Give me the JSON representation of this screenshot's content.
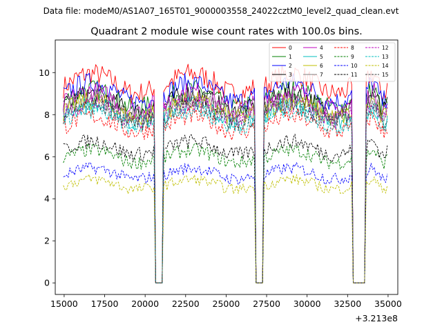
{
  "suptitle": "Data file: modeM0/AS1A07_165T01_9000003558_24022cztM0_level2_quad_clean.evt",
  "chart_data": {
    "type": "line",
    "title": "Quadrant 2 module wise count rates with 100.0s bins.",
    "xlabel": "",
    "ylabel": "",
    "x_offset_label": "+3.213e8",
    "xlim": [
      14450,
      35600
    ],
    "ylim": [
      -0.55,
      11.55
    ],
    "x_ticks": [
      15000,
      17500,
      20000,
      22500,
      25000,
      27500,
      30000,
      32500,
      35000
    ],
    "y_ticks": [
      0,
      2,
      4,
      6,
      8,
      10
    ],
    "gaps": [
      [
        20600,
        21100
      ],
      [
        26800,
        27300
      ],
      [
        32800,
        33600
      ]
    ],
    "segments": [
      [
        14950,
        20600
      ],
      [
        21100,
        26800
      ],
      [
        27300,
        32800
      ],
      [
        33600,
        34950
      ]
    ],
    "bin": 100,
    "legend_position": "top-right",
    "series": [
      {
        "name": "0",
        "color": "#ff0000",
        "dash": "solid",
        "level": 9.3
      },
      {
        "name": "1",
        "color": "#008000",
        "dash": "solid",
        "level": 8.6
      },
      {
        "name": "2",
        "color": "#0000ff",
        "dash": "solid",
        "level": 8.9
      },
      {
        "name": "3",
        "color": "#000000",
        "dash": "solid",
        "level": 8.4
      },
      {
        "name": "4",
        "color": "#bf00bf",
        "dash": "solid",
        "level": 8.5
      },
      {
        "name": "5",
        "color": "#00bfbf",
        "dash": "solid",
        "level": 7.9
      },
      {
        "name": "6",
        "color": "#bfbf00",
        "dash": "solid",
        "level": 8.1
      },
      {
        "name": "7",
        "color": "#808080",
        "dash": "solid",
        "level": 8.2
      },
      {
        "name": "8",
        "color": "#ff0000",
        "dash": "dashed",
        "level": 7.4
      },
      {
        "name": "9",
        "color": "#008000",
        "dash": "dashed",
        "level": 5.9
      },
      {
        "name": "10",
        "color": "#0000ff",
        "dash": "dashed",
        "level": 5.1
      },
      {
        "name": "11",
        "color": "#000000",
        "dash": "dashed",
        "level": 6.3
      },
      {
        "name": "12",
        "color": "#bf00bf",
        "dash": "dashed",
        "level": 8.0
      },
      {
        "name": "13",
        "color": "#00bfbf",
        "dash": "dashed",
        "level": 7.7
      },
      {
        "name": "14",
        "color": "#bfbf00",
        "dash": "dashed",
        "level": 4.6
      },
      {
        "name": "15",
        "color": "#404040",
        "dash": "dashed",
        "level": 7.9
      }
    ]
  }
}
